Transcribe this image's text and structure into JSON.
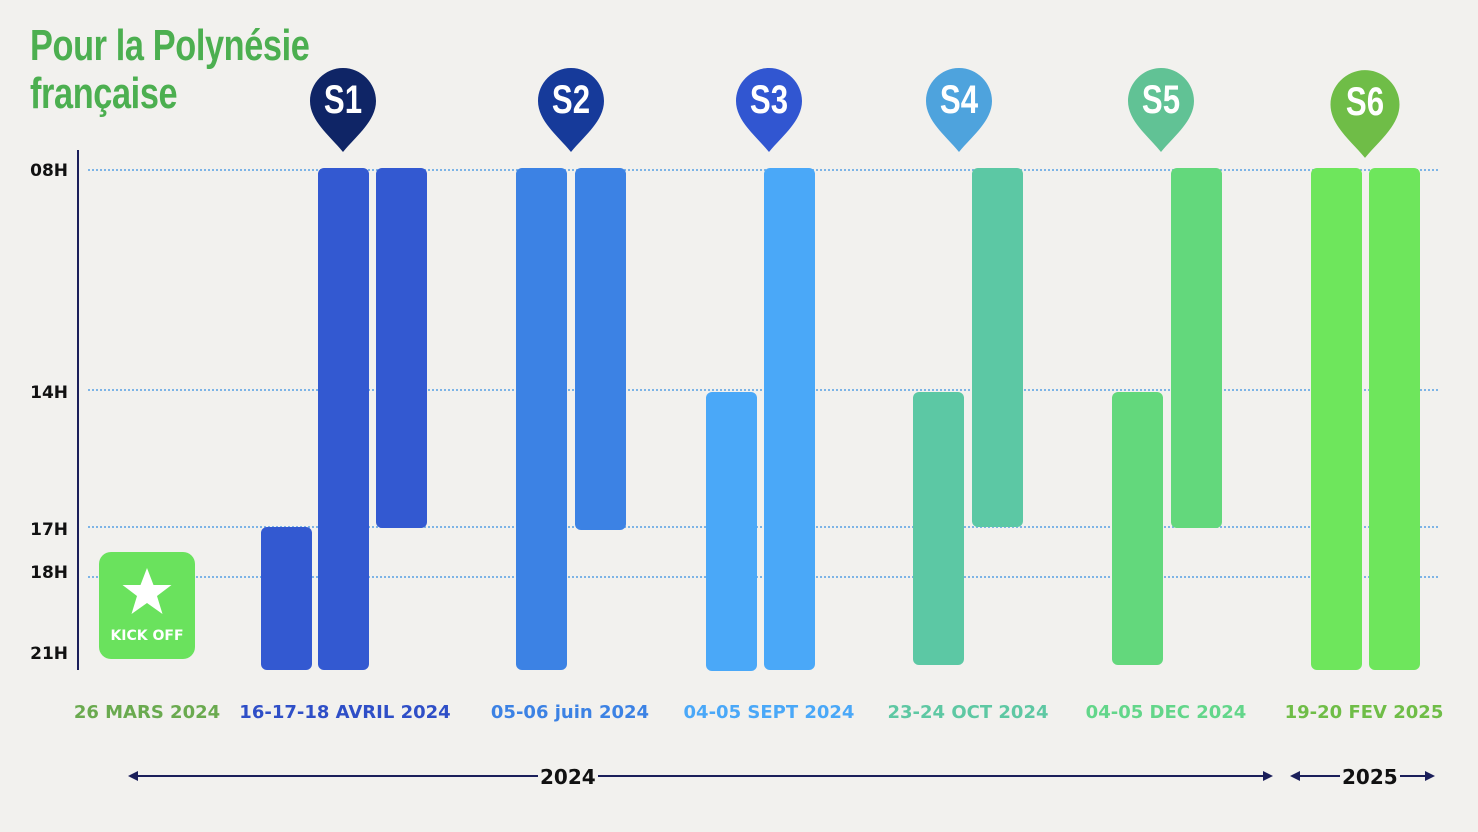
{
  "title": {
    "line1": "Pour la Polynésie",
    "line2": "française"
  },
  "hours": [
    "08H",
    "14H",
    "17H",
    "18H",
    "21H"
  ],
  "kickoff": {
    "label": "KICK OFF",
    "color": "#6ae25d",
    "icon": "star-icon"
  },
  "sessions": [
    {
      "id": "S1",
      "color": "#0f2566"
    },
    {
      "id": "S2",
      "color": "#163a9a"
    },
    {
      "id": "S3",
      "color": "#3156d1"
    },
    {
      "id": "S4",
      "color": "#4ea3dd"
    },
    {
      "id": "S5",
      "color": "#61c295"
    },
    {
      "id": "S6",
      "color": "#6fbd47"
    }
  ],
  "dates": [
    {
      "label": "26 MARS 2024",
      "color": "#6aaa4f"
    },
    {
      "label": "16-17-18 AVRIL 2024",
      "color": "#2f4fc7"
    },
    {
      "label": "05-06 juin 2024",
      "color": "#3c82e4"
    },
    {
      "label": "04-05 SEPT 2024",
      "color": "#4aa8f8"
    },
    {
      "label": "23-24 OCT 2024",
      "color": "#5ec8a3"
    },
    {
      "label": "04-05 DEC 2024",
      "color": "#63d68a"
    },
    {
      "label": "19-20 FEV 2025",
      "color": "#6fbd47"
    }
  ],
  "bar_colors": {
    "s1": "#3359d1",
    "s2": "#3c82e4",
    "s3": "#4aa8f8",
    "s4": "#5cc8a4",
    "s5": "#63d87c",
    "s6": "#6ee65c"
  },
  "schedule": [
    {
      "session": "S1",
      "day": 1,
      "start": "17H",
      "end": "21H"
    },
    {
      "session": "S1",
      "day": 2,
      "start": "08H",
      "end": "21H"
    },
    {
      "session": "S1",
      "day": 3,
      "start": "08H",
      "end": "17H"
    },
    {
      "session": "S2",
      "day": 1,
      "start": "08H",
      "end": "21H"
    },
    {
      "session": "S2",
      "day": 2,
      "start": "08H",
      "end": "17H"
    },
    {
      "session": "S3",
      "day": 1,
      "start": "14H",
      "end": "21H"
    },
    {
      "session": "S3",
      "day": 2,
      "start": "08H",
      "end": "21H"
    },
    {
      "session": "S4",
      "day": 1,
      "start": "14H",
      "end": "21H"
    },
    {
      "session": "S4",
      "day": 2,
      "start": "08H",
      "end": "17H"
    },
    {
      "session": "S5",
      "day": 1,
      "start": "14H",
      "end": "21H"
    },
    {
      "session": "S5",
      "day": 2,
      "start": "08H",
      "end": "17H"
    },
    {
      "session": "S6",
      "day": 1,
      "start": "08H",
      "end": "21H"
    },
    {
      "session": "S6",
      "day": 2,
      "start": "08H",
      "end": "21H"
    }
  ],
  "years": [
    {
      "label": "2024"
    },
    {
      "label": "2025"
    }
  ],
  "axis_color": "#1b1f5a"
}
